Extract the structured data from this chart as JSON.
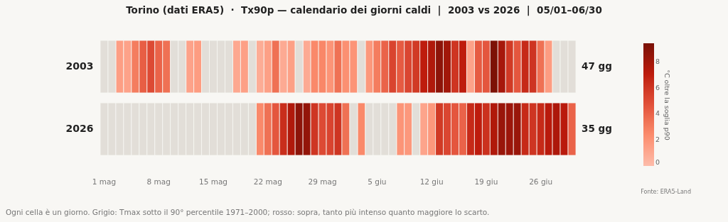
{
  "chart_data": {
    "type": "heatmap",
    "title": "Torino (dati ERA5)  ·  Tx90p — calendario dei giorni caldi  |  2003 vs 2026  |  05/01–06/30",
    "categories": [
      "1 mag",
      null,
      null,
      null,
      null,
      null,
      null,
      "8 mag",
      null,
      null,
      null,
      null,
      null,
      null,
      "15 mag",
      null,
      null,
      null,
      null,
      null,
      null,
      "22 mag",
      null,
      null,
      null,
      null,
      null,
      null,
      "29 mag",
      null,
      null,
      null,
      null,
      null,
      null,
      "5 giu",
      null,
      null,
      null,
      null,
      null,
      null,
      "12 giu",
      null,
      null,
      null,
      null,
      null,
      null,
      "19 giu",
      null,
      null,
      null,
      null,
      null,
      null,
      "26 giu",
      null,
      null,
      null,
      null
    ],
    "y_categories": [
      "2003",
      "2026"
    ],
    "y2_categories": [
      "47 gg",
      "35 gg"
    ],
    "cells": [
      [
        null,
        null,
        1.5,
        1.3,
        3,
        4.2,
        5,
        4,
        3.5,
        null,
        null,
        1.3,
        1.6,
        null,
        null,
        null,
        null,
        1.0,
        1.4,
        null,
        0.8,
        1.4,
        3.5,
        0.9,
        1.4,
        null,
        0.9,
        2.5,
        2.6,
        2,
        3.5,
        2.2,
        2,
        null,
        1.8,
        3,
        4,
        5.3,
        4.3,
        5.2,
        5.8,
        7,
        7.5,
        8.7,
        8,
        6,
        7,
        1.3,
        4.3,
        4.5,
        9.3,
        7.8,
        5.8,
        4.5,
        6.5,
        6,
        3.5,
        1.6,
        null,
        null,
        null
      ],
      [
        null,
        null,
        null,
        null,
        null,
        null,
        null,
        null,
        null,
        null,
        null,
        null,
        null,
        null,
        null,
        null,
        null,
        null,
        null,
        null,
        2.5,
        3.5,
        4.5,
        6.3,
        7.5,
        8.7,
        8.5,
        6,
        5,
        5.3,
        6,
        3.5,
        null,
        2.5,
        null,
        null,
        null,
        null,
        2,
        1.8,
        null,
        1.2,
        1.8,
        5.8,
        5.2,
        4.5,
        4,
        6.5,
        7,
        6.2,
        7.5,
        8.3,
        8.2,
        8.3,
        6.5,
        6,
        6.5,
        7.2,
        7.6,
        7.2,
        4
      ]
    ],
    "clim": [
      0,
      9.4
    ],
    "cticks": [
      0,
      2,
      4,
      6,
      8
    ],
    "clabel": "°C oltre la soglia p90",
    "annotations": [
      "Fonte: ERA5-Land",
      "Ogni cella è un giorno. Grigio: Tmax sotto il 90° percentile 1971–2000; rosso: sopra, tanto più intenso quanto maggiore lo scarto."
    ]
  }
}
